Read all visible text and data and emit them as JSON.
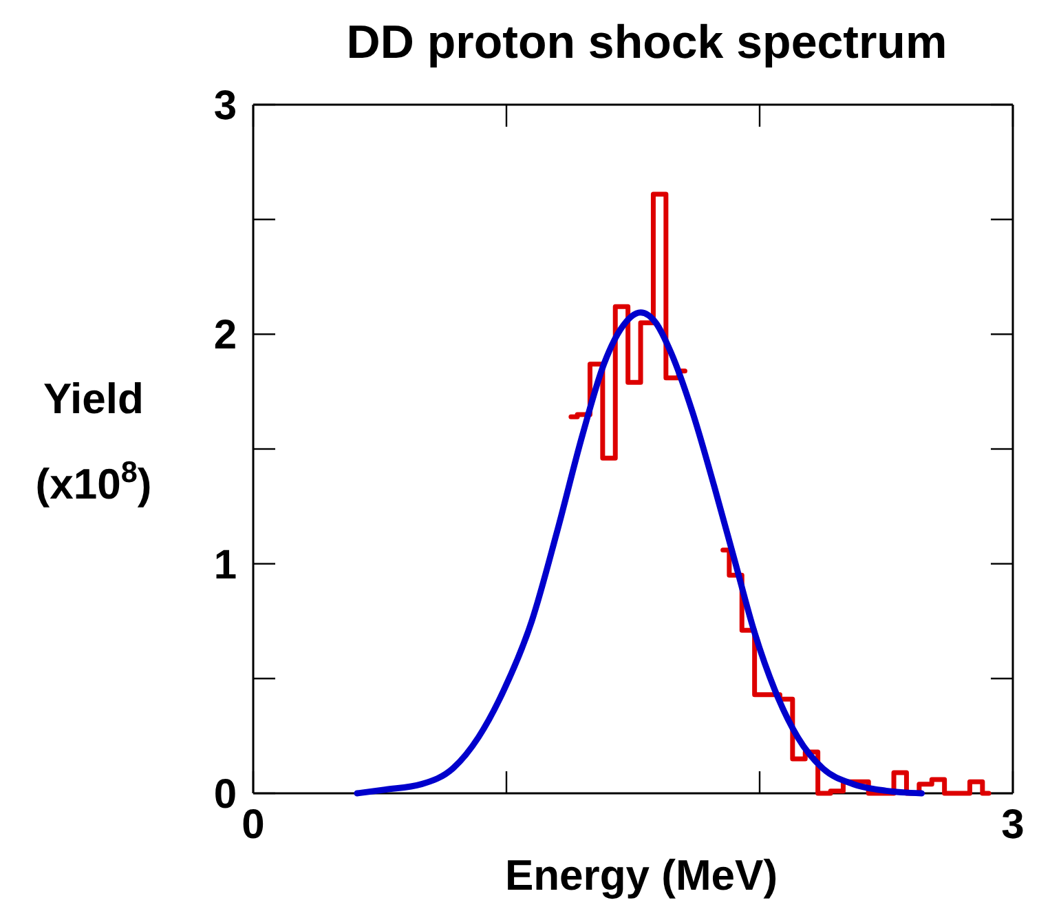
{
  "chart_data": {
    "type": "line",
    "title": "DD proton shock spectrum",
    "xlabel": "Energy (MeV)",
    "ylabel": "Yield (x10$^{8}$)",
    "xlim": [
      0,
      3
    ],
    "xticks": [
      0,
      {
        "value": 1,
        "label": null
      },
      {
        "value": 2,
        "label": null
      },
      3
    ],
    "ylim": [
      0,
      3
    ],
    "yticks": [
      0,
      {
        "value": 0.5,
        "label": null
      },
      1,
      {
        "value": 1.5,
        "label": null
      },
      2,
      {
        "value": 2.5,
        "label": null
      },
      3
    ],
    "series": [
      {
        "type": "step",
        "color": "#dd0000",
        "x": [
          1.255,
          1.305,
          1.355,
          1.405,
          1.455,
          1.505,
          1.555,
          1.605,
          1.655,
          1.705,
          1.755,
          1.805,
          1.855,
          1.905,
          1.955,
          2.005,
          2.055,
          2.105,
          2.155,
          2.205,
          2.255,
          2.305,
          2.355,
          2.405,
          2.455,
          2.505,
          2.555,
          2.605,
          2.655,
          2.705,
          2.755,
          2.805,
          2.855,
          2.905
        ],
        "values": [
          1.64,
          1.65,
          1.87,
          1.46,
          2.12,
          1.79,
          2.05,
          2.61,
          1.81,
          1.84,
          null,
          null,
          1.06,
          0.95,
          0.71,
          0.43,
          0.43,
          0.41,
          0.15,
          0.18,
          0,
          0.01,
          0.05,
          0.05,
          0,
          0,
          0.09,
          0,
          0.04,
          0.06,
          0,
          0,
          0.05,
          0
        ]
      },
      {
        "color": "#0000cc",
        "x": [
          0.41,
          0.52,
          0.665,
          0.79,
          0.89,
          0.99,
          1.1,
          1.2,
          1.3,
          1.385,
          1.45,
          1.53,
          1.59,
          1.65,
          1.735,
          1.82,
          1.9,
          1.98,
          2.06,
          2.15,
          2.25,
          2.37,
          2.5,
          2.64
        ],
        "values": [
          0,
          0.016,
          0.04,
          0.11,
          0.245,
          0.45,
          0.75,
          1.14,
          1.56,
          1.87,
          2.02,
          2.095,
          2.05,
          1.92,
          1.66,
          1.34,
          1.02,
          0.7,
          0.45,
          0.245,
          0.108,
          0.04,
          0.011,
          0
        ]
      }
    ]
  }
}
